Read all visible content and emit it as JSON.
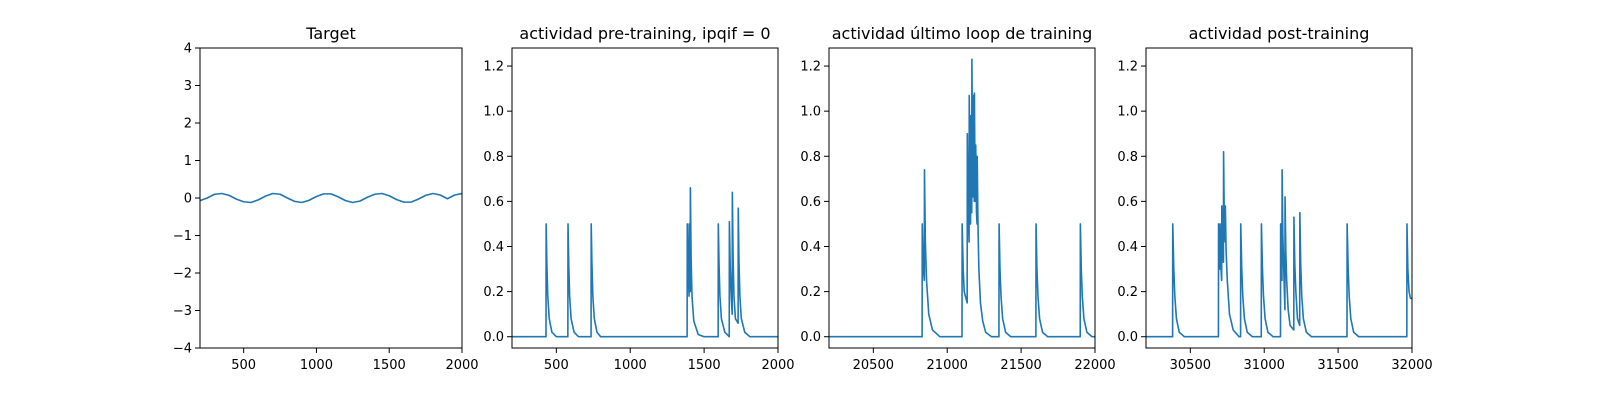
{
  "colors": {
    "series": "#1f77b4",
    "axis": "#000000",
    "background": "#ffffff"
  },
  "chart_data": [
    {
      "type": "line",
      "title": "Target",
      "xlim": [
        200,
        2000
      ],
      "ylim": [
        -4,
        4
      ],
      "xticks": [
        500,
        1000,
        1500,
        2000
      ],
      "yticks": [
        -4,
        -3,
        -2,
        -1,
        0,
        1,
        2,
        3,
        4
      ],
      "xtick_labels": [
        "500",
        "1000",
        "1500",
        "2000"
      ],
      "ytick_labels": [
        "−4",
        "−3",
        "−2",
        "−1",
        "0",
        "1",
        "2",
        "3",
        "4"
      ],
      "series": [
        {
          "name": "target",
          "x": [
            200,
            250,
            300,
            350,
            400,
            450,
            500,
            550,
            600,
            650,
            700,
            750,
            800,
            850,
            900,
            950,
            1000,
            1050,
            1100,
            1150,
            1200,
            1250,
            1300,
            1350,
            1400,
            1450,
            1500,
            1550,
            1600,
            1650,
            1700,
            1750,
            1800,
            1850,
            1900,
            1950,
            2000
          ],
          "y": [
            -0.07,
            0.0,
            0.1,
            0.12,
            0.07,
            -0.03,
            -0.1,
            -0.12,
            -0.05,
            0.05,
            0.12,
            0.1,
            0.0,
            -0.09,
            -0.12,
            -0.06,
            0.04,
            0.11,
            0.11,
            0.03,
            -0.07,
            -0.12,
            -0.08,
            0.02,
            0.1,
            0.12,
            0.06,
            -0.04,
            -0.11,
            -0.11,
            -0.03,
            0.07,
            0.12,
            0.08,
            -0.02,
            0.08,
            0.12
          ]
        }
      ]
    },
    {
      "type": "line",
      "title": "actividad pre-training, ipqif = 0",
      "xlim": [
        200,
        2000
      ],
      "ylim": [
        -0.05,
        1.28
      ],
      "xticks": [
        500,
        1000,
        1500,
        2000
      ],
      "yticks": [
        0.0,
        0.2,
        0.4,
        0.6,
        0.8,
        1.0,
        1.2
      ],
      "xtick_labels": [
        "500",
        "1000",
        "1500",
        "2000"
      ],
      "ytick_labels": [
        "0.0",
        "0.2",
        "0.4",
        "0.6",
        "0.8",
        "1.0",
        "1.2"
      ],
      "series": [
        {
          "name": "actividad",
          "x": [
            200,
            430,
            431,
            436,
            442,
            452,
            470,
            500,
            578,
            579,
            584,
            590,
            600,
            620,
            650,
            735,
            736,
            741,
            747,
            757,
            775,
            800,
            1385,
            1386,
            1391,
            1398,
            1399,
            1403,
            1406,
            1407,
            1412,
            1418,
            1430,
            1460,
            1500,
            1595,
            1596,
            1601,
            1607,
            1617,
            1640,
            1670,
            1671,
            1676,
            1682,
            1690,
            1691,
            1696,
            1702,
            1712,
            1730,
            1731,
            1736,
            1742,
            1752,
            1775,
            1810,
            2000
          ],
          "y": [
            0.0,
            0.0,
            0.5,
            0.32,
            0.18,
            0.08,
            0.02,
            0.0,
            0.0,
            0.5,
            0.32,
            0.18,
            0.08,
            0.02,
            0.0,
            0.0,
            0.5,
            0.32,
            0.18,
            0.08,
            0.02,
            0.0,
            0.0,
            0.5,
            0.32,
            0.18,
            0.5,
            0.33,
            0.2,
            0.66,
            0.35,
            0.18,
            0.07,
            0.01,
            0.0,
            0.0,
            0.5,
            0.32,
            0.18,
            0.08,
            0.02,
            0.0,
            0.51,
            0.33,
            0.2,
            0.1,
            0.64,
            0.35,
            0.18,
            0.08,
            0.06,
            0.57,
            0.33,
            0.18,
            0.08,
            0.02,
            0.0,
            0.0
          ]
        }
      ]
    },
    {
      "type": "line",
      "title": "actividad último loop de training",
      "xlim": [
        20200,
        22000
      ],
      "ylim": [
        -0.05,
        1.28
      ],
      "xticks": [
        20500,
        21000,
        21500,
        22000
      ],
      "yticks": [
        0.0,
        0.2,
        0.4,
        0.6,
        0.8,
        1.0,
        1.2
      ],
      "xtick_labels": [
        "20500",
        "21000",
        "21500",
        "22000"
      ],
      "ytick_labels": [
        "0.0",
        "0.2",
        "0.4",
        "0.6",
        "0.8",
        "1.0",
        "1.2"
      ],
      "series": [
        {
          "name": "actividad",
          "x": [
            20200,
            20830,
            20831,
            20838,
            20845,
            20846,
            20852,
            20860,
            20875,
            20900,
            20950,
            21100,
            21101,
            21108,
            21115,
            21135,
            21136,
            21142,
            21148,
            21149,
            21155,
            21158,
            21159,
            21163,
            21166,
            21167,
            21172,
            21175,
            21176,
            21180,
            21183,
            21184,
            21188,
            21192,
            21193,
            21198,
            21202,
            21203,
            21208,
            21214,
            21225,
            21240,
            21260,
            21300,
            21350,
            21351,
            21357,
            21364,
            21375,
            21395,
            21430,
            21600,
            21601,
            21607,
            21614,
            21625,
            21645,
            21680,
            21900,
            21901,
            21907,
            21914,
            21925,
            21945,
            21980,
            22000
          ],
          "y": [
            0.0,
            0.0,
            0.5,
            0.3,
            0.25,
            0.74,
            0.42,
            0.25,
            0.1,
            0.03,
            0.0,
            0.0,
            0.5,
            0.3,
            0.2,
            0.15,
            0.9,
            0.55,
            0.42,
            1.07,
            0.65,
            0.5,
            0.98,
            0.62,
            0.55,
            1.23,
            0.75,
            0.62,
            1.07,
            0.7,
            0.6,
            1.08,
            0.7,
            0.6,
            0.85,
            0.55,
            0.5,
            0.8,
            0.5,
            0.3,
            0.15,
            0.07,
            0.02,
            0.0,
            0.0,
            0.5,
            0.3,
            0.18,
            0.08,
            0.02,
            0.0,
            0.0,
            0.5,
            0.3,
            0.18,
            0.08,
            0.02,
            0.0,
            0.0,
            0.5,
            0.3,
            0.18,
            0.08,
            0.02,
            0.0,
            0.0
          ]
        }
      ]
    },
    {
      "type": "line",
      "title": "actividad post-training",
      "xlim": [
        30200,
        32000
      ],
      "ylim": [
        -0.05,
        1.28
      ],
      "xticks": [
        30500,
        31000,
        31500,
        32000
      ],
      "yticks": [
        0.0,
        0.2,
        0.4,
        0.6,
        0.8,
        1.0,
        1.2
      ],
      "xtick_labels": [
        "30500",
        "31000",
        "31500",
        "32000"
      ],
      "ytick_labels": [
        "0.0",
        "0.2",
        "0.4",
        "0.6",
        "0.8",
        "1.0",
        "1.2"
      ],
      "series": [
        {
          "name": "actividad",
          "x": [
            30200,
            30380,
            30381,
            30388,
            30395,
            30406,
            30425,
            30460,
            30690,
            30691,
            30696,
            30700,
            30701,
            30706,
            30712,
            30713,
            30718,
            30724,
            30725,
            30730,
            30736,
            30737,
            30742,
            30750,
            30765,
            30790,
            30830,
            30840,
            30841,
            30848,
            30855,
            30866,
            30885,
            30920,
            30980,
            30981,
            30988,
            30995,
            31006,
            31025,
            31060,
            31110,
            31111,
            31116,
            31120,
            31121,
            31126,
            31132,
            31140,
            31141,
            31146,
            31152,
            31162,
            31175,
            31200,
            31201,
            31207,
            31214,
            31225,
            31240,
            31241,
            31247,
            31254,
            31265,
            31285,
            31320,
            31560,
            31561,
            31568,
            31575,
            31586,
            31605,
            31640,
            31800,
            31965,
            31966,
            31972,
            31980,
            31990,
            32000
          ],
          "y": [
            0.0,
            0.0,
            0.5,
            0.3,
            0.18,
            0.08,
            0.02,
            0.0,
            0.0,
            0.5,
            0.35,
            0.3,
            0.5,
            0.32,
            0.25,
            0.58,
            0.4,
            0.33,
            0.82,
            0.5,
            0.42,
            0.58,
            0.38,
            0.25,
            0.1,
            0.03,
            0.0,
            0.0,
            0.5,
            0.3,
            0.18,
            0.08,
            0.02,
            0.0,
            0.0,
            0.5,
            0.3,
            0.18,
            0.08,
            0.02,
            0.0,
            0.0,
            0.5,
            0.35,
            0.25,
            0.74,
            0.45,
            0.3,
            0.12,
            0.62,
            0.38,
            0.25,
            0.12,
            0.05,
            0.03,
            0.53,
            0.32,
            0.2,
            0.08,
            0.05,
            0.55,
            0.32,
            0.18,
            0.08,
            0.02,
            0.0,
            0.0,
            0.5,
            0.3,
            0.18,
            0.08,
            0.02,
            0.0,
            0.0,
            0.0,
            0.5,
            0.3,
            0.2,
            0.17,
            0.17
          ]
        }
      ]
    }
  ]
}
